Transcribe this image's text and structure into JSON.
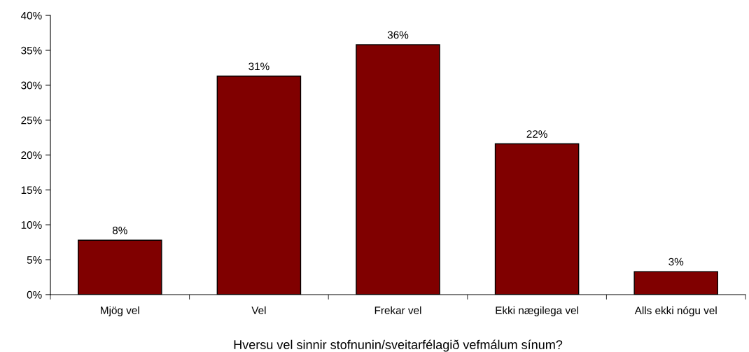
{
  "chart_data": {
    "type": "bar",
    "xlabel": "Hversu vel sinnir stofnunin/sveitarfélagið vefmálum sínum?",
    "categories": [
      "Mjög vel",
      "Vel",
      "Frekar vel",
      "Ekki nægilega vel",
      "Alls ekki nógu vel"
    ],
    "values": [
      7.8,
      31.3,
      35.8,
      21.6,
      3.3
    ],
    "value_labels": [
      "8%",
      "31%",
      "36%",
      "22%",
      "3%"
    ],
    "color": "#800000",
    "ylim": [
      0,
      40
    ],
    "yticks": [
      {
        "value": 0,
        "label": "0%"
      },
      {
        "value": 5,
        "label": "5%"
      },
      {
        "value": 10,
        "label": "10%"
      },
      {
        "value": 15,
        "label": "15%"
      },
      {
        "value": 20,
        "label": "20%"
      },
      {
        "value": 25,
        "label": "25%"
      },
      {
        "value": 30,
        "label": "30%"
      },
      {
        "value": 35,
        "label": "35%"
      },
      {
        "value": 40,
        "label": "40%"
      }
    ],
    "grid": false,
    "legend": false
  }
}
